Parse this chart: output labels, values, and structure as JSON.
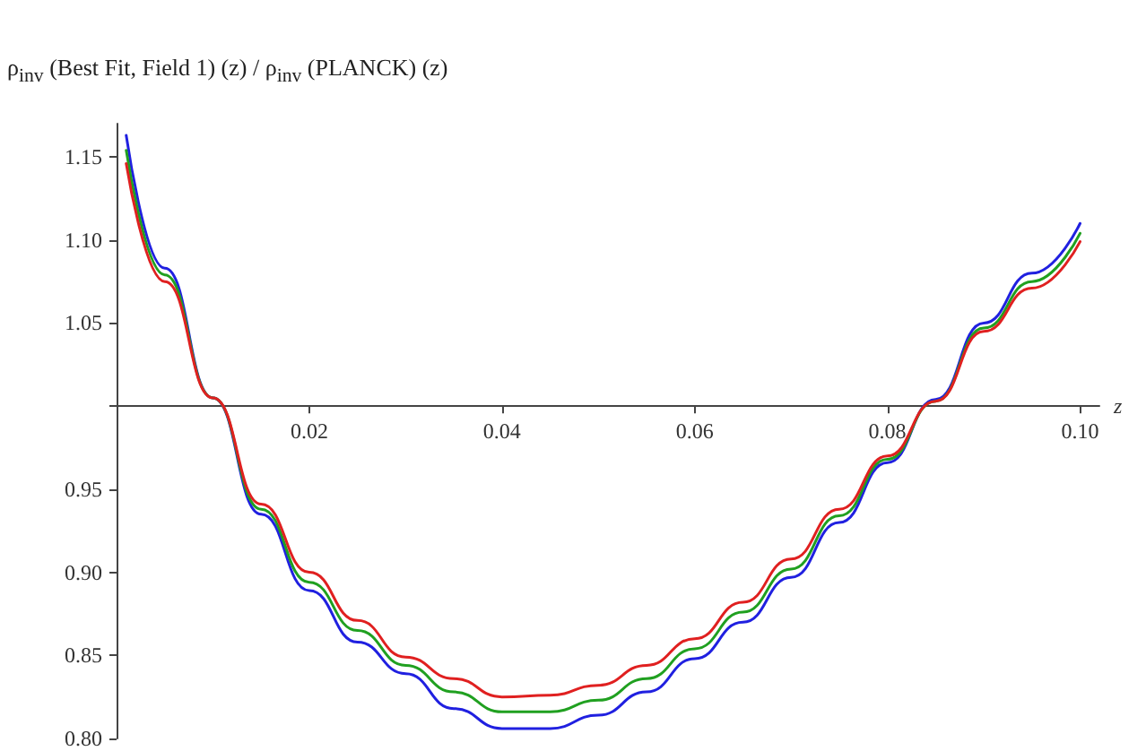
{
  "chart_data": {
    "type": "line",
    "ylabel": "ρ$_{inv}$ (Best Fit, Field 1) (z) / ρ$_{inv}$ (PLANCK) (z)",
    "xlabel": "z",
    "x": [
      0.001,
      0.005,
      0.01,
      0.015,
      0.02,
      0.025,
      0.03,
      0.035,
      0.04,
      0.045,
      0.05,
      0.055,
      0.06,
      0.065,
      0.07,
      0.075,
      0.08,
      0.085,
      0.09,
      0.095,
      0.1
    ],
    "series": [
      {
        "color": "#2020e0",
        "values": [
          1.163,
          1.083,
          1.005,
          0.935,
          0.889,
          0.858,
          0.839,
          0.818,
          0.806,
          0.806,
          0.814,
          0.828,
          0.848,
          0.87,
          0.897,
          0.93,
          0.966,
          1.004,
          1.05,
          1.08,
          1.11
        ]
      },
      {
        "color": "#20a020",
        "values": [
          1.154,
          1.079,
          1.005,
          0.938,
          0.894,
          0.865,
          0.844,
          0.828,
          0.816,
          0.816,
          0.823,
          0.836,
          0.854,
          0.876,
          0.902,
          0.934,
          0.968,
          1.003,
          1.047,
          1.075,
          1.104
        ]
      },
      {
        "color": "#e02020",
        "values": [
          1.146,
          1.075,
          1.005,
          0.941,
          0.9,
          0.871,
          0.849,
          0.836,
          0.825,
          0.826,
          0.832,
          0.844,
          0.86,
          0.882,
          0.908,
          0.938,
          0.97,
          1.003,
          1.045,
          1.071,
          1.099
        ]
      }
    ],
    "xlim": [
      0,
      0.102
    ],
    "xticks": [
      0.02,
      0.04,
      0.06,
      0.08,
      {
        "value": 0.1,
        "label": "0.10"
      }
    ],
    "ylim": [
      0.8,
      1.17
    ],
    "yticks": [
      {
        "value": 0.8,
        "label": "0.80"
      },
      0.85,
      {
        "value": 0.9,
        "label": "0.90"
      },
      0.95,
      {
        "value": 1,
        "label": null
      },
      1.05,
      {
        "value": 1.1,
        "label": "1.10"
      },
      1.15
    ],
    "grid": false,
    "marker": "none",
    "line_style": "solid"
  }
}
